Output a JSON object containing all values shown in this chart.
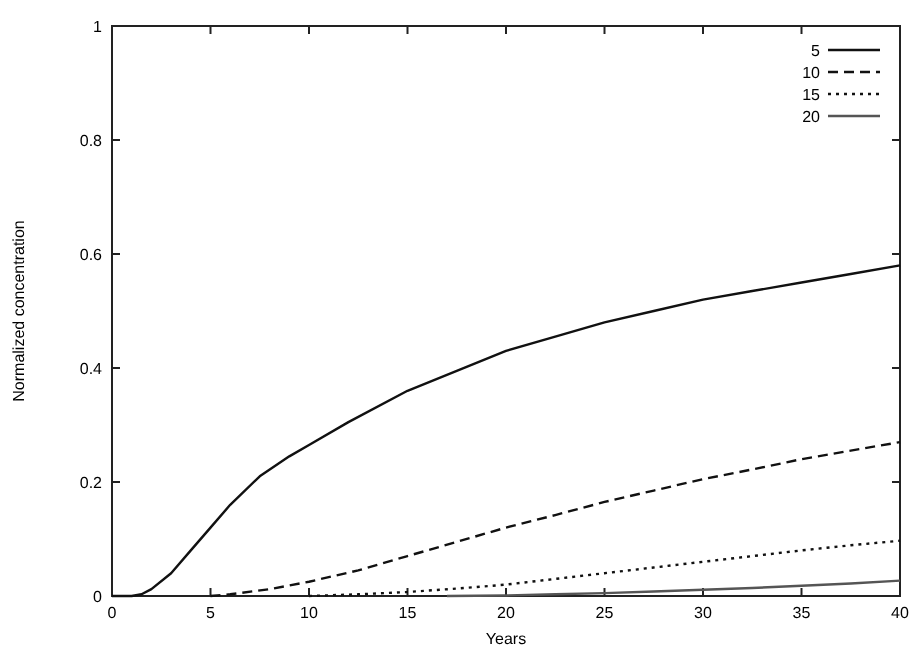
{
  "chart_data": {
    "type": "line",
    "xlabel": "Years",
    "ylabel": "Normalized concentration",
    "xlim": [
      0,
      40
    ],
    "ylim": [
      0,
      1
    ],
    "xticks": [
      0,
      5,
      10,
      15,
      20,
      25,
      30,
      35,
      40
    ],
    "yticks": [
      0,
      0.2,
      0.4,
      0.6,
      0.8,
      1
    ],
    "legend": "top right",
    "series": [
      {
        "name": "5",
        "color": "#111111",
        "line_style": "solid",
        "x": [
          0,
          1,
          1.5,
          2,
          3,
          4,
          5,
          6,
          7.5,
          9,
          10,
          12,
          15,
          17.5,
          20,
          22.5,
          25,
          27.5,
          30,
          32.5,
          35,
          37.5,
          40
        ],
        "values": [
          0,
          0,
          0.003,
          0.012,
          0.04,
          0.08,
          0.12,
          0.16,
          0.21,
          0.245,
          0.265,
          0.305,
          0.36,
          0.395,
          0.43,
          0.455,
          0.48,
          0.5,
          0.52,
          0.535,
          0.55,
          0.565,
          0.58
        ]
      },
      {
        "name": "10",
        "color": "#111111",
        "line_style": "dashed",
        "x": [
          5,
          6,
          8,
          10,
          12.5,
          15,
          17.5,
          20,
          22.5,
          25,
          27.5,
          30,
          32.5,
          35,
          37.5,
          40
        ],
        "values": [
          0,
          0.003,
          0.012,
          0.025,
          0.045,
          0.07,
          0.095,
          0.12,
          0.142,
          0.165,
          0.185,
          0.205,
          0.222,
          0.24,
          0.255,
          0.27
        ]
      },
      {
        "name": "15",
        "color": "#111111",
        "line_style": "dotted",
        "x": [
          10,
          12.5,
          15,
          17.5,
          20,
          22.5,
          25,
          27.5,
          30,
          32.5,
          35,
          37.5,
          40
        ],
        "values": [
          0,
          0.003,
          0.007,
          0.013,
          0.02,
          0.03,
          0.04,
          0.05,
          0.06,
          0.07,
          0.08,
          0.089,
          0.097
        ]
      },
      {
        "name": "20",
        "color": "#555555",
        "line_style": "solid",
        "x": [
          17,
          20,
          22.5,
          25,
          27.5,
          30,
          32.5,
          35,
          37.5,
          40
        ],
        "values": [
          0,
          0.001,
          0.003,
          0.005,
          0.008,
          0.011,
          0.014,
          0.018,
          0.022,
          0.027
        ]
      }
    ]
  }
}
